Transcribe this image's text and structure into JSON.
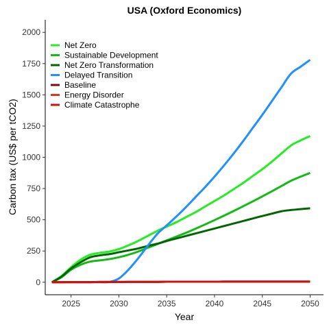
{
  "chart_data": {
    "type": "line",
    "title": "USA (Oxford Economics)",
    "xlabel": "Year",
    "ylabel": "Carbon tax (US$ per tCO2)",
    "xlim": [
      2022.3,
      2051.4
    ],
    "ylim": [
      -100,
      2100
    ],
    "xticks": [
      2025,
      2030,
      2035,
      2040,
      2045,
      2050
    ],
    "yticks": [
      0,
      250,
      500,
      750,
      1000,
      1250,
      1500,
      1750,
      2000
    ],
    "grid": false,
    "legend_position": "top-left",
    "x": [
      2023,
      2024,
      2025,
      2026,
      2027,
      2028,
      2029,
      2030,
      2031,
      2032,
      2033,
      2034,
      2035,
      2036,
      2037,
      2038,
      2039,
      2040,
      2041,
      2042,
      2043,
      2044,
      2045,
      2046,
      2047,
      2048,
      2049,
      2050
    ],
    "series": [
      {
        "name": "Net Zero",
        "color": "#22ee22",
        "values": [
          0,
          50,
          120,
          180,
          220,
          235,
          245,
          265,
          295,
          330,
          370,
          410,
          445,
          480,
          520,
          560,
          605,
          650,
          695,
          745,
          795,
          850,
          905,
          965,
          1030,
          1095,
          1135,
          1170
        ]
      },
      {
        "name": "Sustainable Development",
        "color": "#11bb11",
        "values": [
          0,
          40,
          100,
          140,
          165,
          175,
          185,
          200,
          220,
          245,
          275,
          305,
          335,
          365,
          395,
          428,
          462,
          497,
          533,
          570,
          608,
          647,
          687,
          728,
          770,
          812,
          845,
          875
        ]
      },
      {
        "name": "Net Zero Transformation",
        "color": "#006600",
        "values": [
          0,
          45,
          110,
          160,
          200,
          215,
          225,
          240,
          255,
          270,
          290,
          308,
          330,
          350,
          370,
          390,
          410,
          430,
          450,
          470,
          490,
          510,
          530,
          549,
          568,
          578,
          585,
          592
        ]
      },
      {
        "name": "Delayed Transition",
        "color": "#1e90ff",
        "values": [
          0,
          0,
          0,
          0,
          0,
          0,
          2,
          30,
          100,
          190,
          290,
          385,
          455,
          525,
          600,
          680,
          760,
          845,
          935,
          1030,
          1130,
          1235,
          1340,
          1450,
          1560,
          1670,
          1725,
          1780
        ]
      },
      {
        "name": "Baseline",
        "color": "#7a0a0a",
        "values": [
          0,
          0,
          1,
          1,
          1,
          2,
          2,
          2,
          3,
          3,
          3,
          3,
          4,
          4,
          4,
          4,
          4,
          4,
          5,
          5,
          5,
          5,
          5,
          5,
          5,
          5,
          5,
          5
        ]
      },
      {
        "name": "Energy Disorder",
        "color": "#dd3322",
        "values": [
          0,
          0,
          1,
          1,
          1,
          2,
          2,
          2,
          3,
          3,
          3,
          3,
          4,
          4,
          4,
          4,
          4,
          4,
          5,
          5,
          5,
          5,
          5,
          5,
          5,
          5,
          5,
          5
        ]
      },
      {
        "name": "Climate Catastrophe",
        "color": "#cc1111",
        "values": [
          0,
          0,
          1,
          1,
          1,
          2,
          2,
          2,
          3,
          3,
          3,
          3,
          4,
          4,
          4,
          4,
          4,
          4,
          5,
          5,
          5,
          5,
          5,
          5,
          5,
          5,
          5,
          5
        ]
      }
    ]
  }
}
